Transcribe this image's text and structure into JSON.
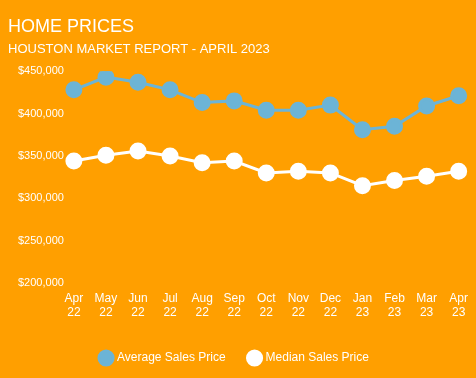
{
  "chart_data": {
    "type": "line",
    "title": "HOME PRICES",
    "subtitle": "HOUSTON MARKET REPORT - APRIL 2023",
    "categories": [
      "Apr 22",
      "May 22",
      "Jun 22",
      "Jul 22",
      "Aug 22",
      "Sep 22",
      "Oct 22",
      "Nov 22",
      "Dec 22",
      "Jan 23",
      "Feb 23",
      "Mar 23",
      "Apr 23"
    ],
    "series": [
      {
        "name": "Average Sales Price",
        "color": "#6cb4d6",
        "marker": "circle",
        "values": [
          428000,
          443000,
          437000,
          428000,
          413000,
          415000,
          404000,
          404000,
          410000,
          381000,
          385000,
          409000,
          421000
        ]
      },
      {
        "name": "Median Sales Price",
        "color": "#ffffff",
        "marker": "circle",
        "values": [
          344000,
          351000,
          356000,
          350000,
          342000,
          344000,
          330000,
          332000,
          330000,
          315000,
          321000,
          326000,
          332000
        ]
      }
    ],
    "ylim": [
      200000,
      450000
    ],
    "yticks": [
      {
        "value": 200000,
        "label": "$200,000"
      },
      {
        "value": 250000,
        "label": "$250,000"
      },
      {
        "value": 300000,
        "label": "$300,000"
      },
      {
        "value": 350000,
        "label": "$350,000"
      },
      {
        "value": 400000,
        "label": "$400,000"
      },
      {
        "value": 450000,
        "label": "$450,000"
      }
    ],
    "grid": false,
    "legend": "bottom"
  }
}
